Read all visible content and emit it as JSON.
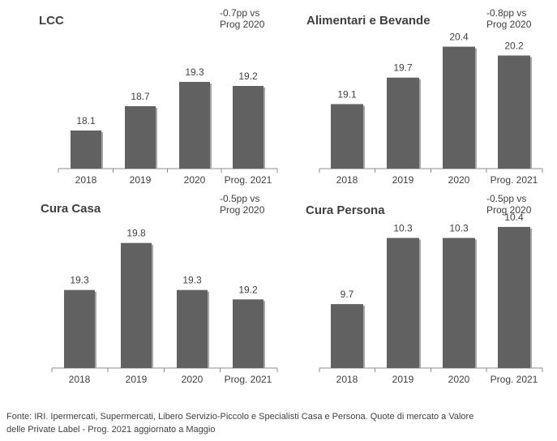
{
  "chart_data": [
    {
      "type": "bar",
      "title": "LCC",
      "note_line1": "-0.7pp vs",
      "note_line2": "Prog 2020",
      "categories": [
        "2018",
        "2019",
        "2020",
        "Prog. 2021"
      ],
      "values": [
        18.1,
        18.7,
        19.3,
        19.2
      ],
      "labels": [
        "18.1",
        "18.7",
        "19.3",
        "19.2"
      ],
      "bar_color": "#616161",
      "shadow_color": "#a6a6a6"
    },
    {
      "type": "bar",
      "title": "Alimentari  e Bevande",
      "note_line1": "-0.8pp vs",
      "note_line2": "Prog 2020",
      "categories": [
        "2018",
        "2019",
        "2020",
        "Prog. 2021"
      ],
      "values": [
        19.1,
        19.7,
        20.4,
        20.2
      ],
      "labels": [
        "19.1",
        "19.7",
        "20.4",
        "20.2"
      ],
      "bar_color": "#616161",
      "shadow_color": "#a6a6a6"
    },
    {
      "type": "bar",
      "title": "Cura Casa",
      "note_line1": "-0.5pp vs",
      "note_line2": "Prog 2020",
      "categories": [
        "2018",
        "2019",
        "2020",
        "Prog. 2021"
      ],
      "values": [
        19.3,
        19.8,
        19.3,
        19.2
      ],
      "labels": [
        "19.3",
        "19.8",
        "19.3",
        "19.2"
      ],
      "bar_color": "#616161",
      "shadow_color": "#a6a6a6"
    },
    {
      "type": "bar",
      "title": "Cura Persona",
      "note_line1": "-0.5pp vs",
      "note_line2": "Prog 2020",
      "categories": [
        "2018",
        "2019",
        "2020",
        "Prog. 2021"
      ],
      "values": [
        9.7,
        10.3,
        10.3,
        10.4
      ],
      "labels": [
        "9.7",
        "10.3",
        "10.3",
        "10.4"
      ],
      "bar_color": "#616161",
      "shadow_color": "#a6a6a6"
    }
  ],
  "footer": {
    "line1": "Fonte: IRI. Ipermercati, Supermercati, Libero Servizio-Piccolo e Specialisti Casa e Persona.   Quote di mercato a Valore",
    "line2": " delle Private Label - Prog. 2021 aggiornato a Maggio"
  }
}
